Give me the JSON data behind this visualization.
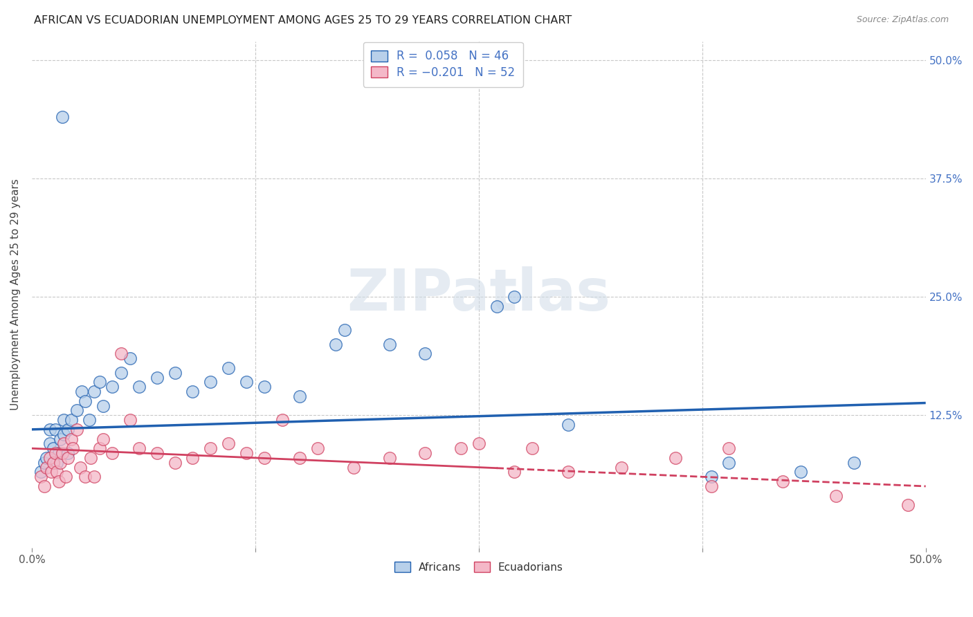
{
  "title": "AFRICAN VS ECUADORIAN UNEMPLOYMENT AMONG AGES 25 TO 29 YEARS CORRELATION CHART",
  "source": "Source: ZipAtlas.com",
  "ylabel": "Unemployment Among Ages 25 to 29 years",
  "xlim": [
    0.0,
    0.5
  ],
  "ylim": [
    -0.015,
    0.52
  ],
  "xticks": [
    0.0,
    0.125,
    0.25,
    0.375,
    0.5
  ],
  "xticklabels": [
    "0.0%",
    "",
    "",
    "",
    "50.0%"
  ],
  "yticks": [
    0.0,
    0.125,
    0.25,
    0.375,
    0.5
  ],
  "yticklabels": [
    "",
    "12.5%",
    "25.0%",
    "37.5%",
    "50.0%"
  ],
  "african_R": 0.058,
  "african_N": 46,
  "ecuadorian_R": -0.201,
  "ecuadorian_N": 52,
  "african_color": "#b8d0ea",
  "ecuadorian_color": "#f4b8c8",
  "african_line_color": "#2060b0",
  "ecuadorian_line_color": "#d04060",
  "watermark": "ZIPatlas",
  "african_line_start": 0.11,
  "african_line_end": 0.138,
  "ecuadorian_line_start": 0.09,
  "ecuadorian_line_end": 0.05,
  "african_points_x": [
    0.005,
    0.007,
    0.008,
    0.01,
    0.01,
    0.012,
    0.013,
    0.014,
    0.015,
    0.016,
    0.017,
    0.018,
    0.018,
    0.02,
    0.02,
    0.022,
    0.025,
    0.028,
    0.03,
    0.032,
    0.035,
    0.038,
    0.04,
    0.045,
    0.05,
    0.055,
    0.06,
    0.07,
    0.08,
    0.09,
    0.1,
    0.11,
    0.12,
    0.13,
    0.15,
    0.17,
    0.175,
    0.2,
    0.22,
    0.26,
    0.27,
    0.3,
    0.38,
    0.39,
    0.43,
    0.46
  ],
  "african_points_y": [
    0.065,
    0.075,
    0.08,
    0.095,
    0.11,
    0.09,
    0.11,
    0.075,
    0.085,
    0.1,
    0.44,
    0.105,
    0.12,
    0.11,
    0.085,
    0.12,
    0.13,
    0.15,
    0.14,
    0.12,
    0.15,
    0.16,
    0.135,
    0.155,
    0.17,
    0.185,
    0.155,
    0.165,
    0.17,
    0.15,
    0.16,
    0.175,
    0.16,
    0.155,
    0.145,
    0.2,
    0.215,
    0.2,
    0.19,
    0.24,
    0.25,
    0.115,
    0.06,
    0.075,
    0.065,
    0.075
  ],
  "ecuadorian_points_x": [
    0.005,
    0.007,
    0.008,
    0.01,
    0.011,
    0.012,
    0.013,
    0.014,
    0.015,
    0.016,
    0.017,
    0.018,
    0.019,
    0.02,
    0.022,
    0.023,
    0.025,
    0.027,
    0.03,
    0.033,
    0.035,
    0.038,
    0.04,
    0.045,
    0.05,
    0.055,
    0.06,
    0.07,
    0.08,
    0.09,
    0.1,
    0.11,
    0.12,
    0.13,
    0.14,
    0.15,
    0.16,
    0.18,
    0.2,
    0.22,
    0.24,
    0.25,
    0.27,
    0.28,
    0.3,
    0.33,
    0.36,
    0.38,
    0.39,
    0.42,
    0.45,
    0.49
  ],
  "ecuadorian_points_y": [
    0.06,
    0.05,
    0.07,
    0.08,
    0.065,
    0.075,
    0.085,
    0.065,
    0.055,
    0.075,
    0.085,
    0.095,
    0.06,
    0.08,
    0.1,
    0.09,
    0.11,
    0.07,
    0.06,
    0.08,
    0.06,
    0.09,
    0.1,
    0.085,
    0.19,
    0.12,
    0.09,
    0.085,
    0.075,
    0.08,
    0.09,
    0.095,
    0.085,
    0.08,
    0.12,
    0.08,
    0.09,
    0.07,
    0.08,
    0.085,
    0.09,
    0.095,
    0.065,
    0.09,
    0.065,
    0.07,
    0.08,
    0.05,
    0.09,
    0.055,
    0.04,
    0.03
  ]
}
